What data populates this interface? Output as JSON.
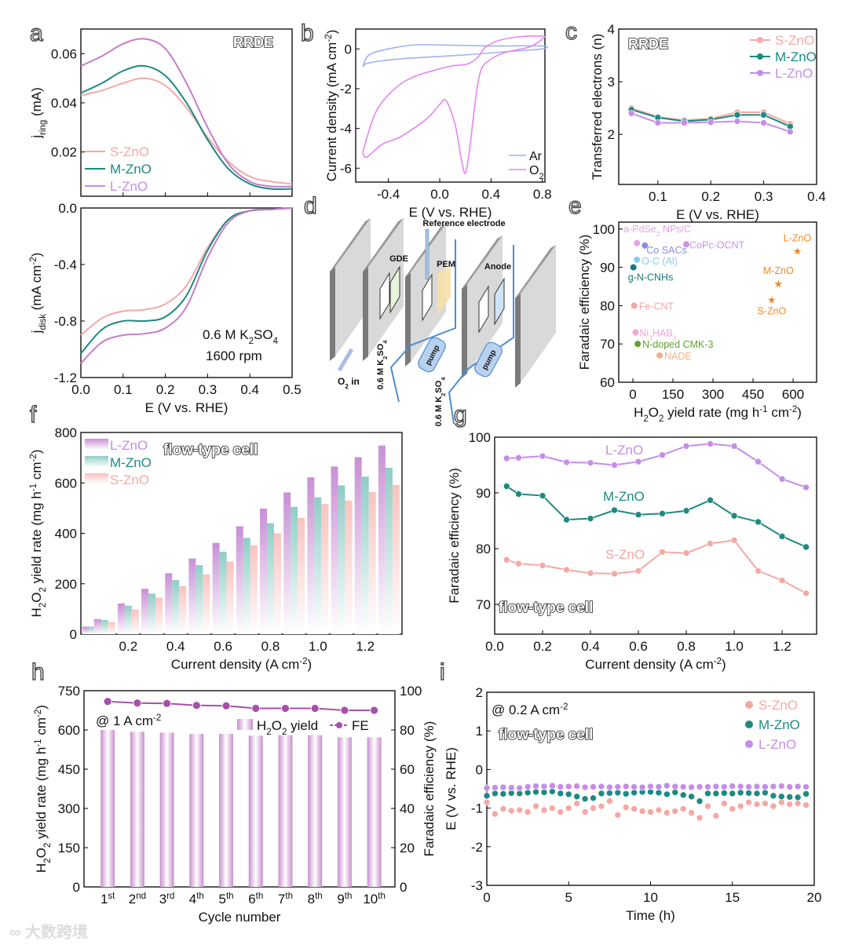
{
  "watermark": "大数跨境",
  "colors": {
    "S-ZnO": "#f4a9a4",
    "M-ZnO": "#1d8a80",
    "L-ZnO": "#c48ee8",
    "a_L": "#c77ccb",
    "h_purple": "#a650aa",
    "ar": "#9fb4ee",
    "o2": "#e486f0",
    "star": "#f08a1c"
  },
  "diagram": {
    "panel_label": "d",
    "reference_electrode": "Reference electrode",
    "gde": "GDE",
    "pem": "PEM",
    "anode": "Anode",
    "pump_1": "pump",
    "pump_2": "pump",
    "o2_in": "O_{2} in",
    "electrolyte_1": "0.6 M K_{2}SO_{4}",
    "electrolyte_2": "0.6 M K_{2}SO_{4}"
  },
  "chart_data": {
    "a_top": {
      "type": "line",
      "panel_label": "a",
      "xlim": [
        0,
        0.5
      ],
      "ylim": [
        0.002,
        0.07
      ],
      "xticks": [
        0,
        0.1,
        0.2,
        0.3,
        0.4,
        0.5
      ],
      "yticks": [
        0.02,
        0.04,
        0.06
      ],
      "ytick_labels": [
        "0.02",
        "0.04",
        "0.06"
      ],
      "ylabel": "j_{ring} (mA)",
      "annotations": [
        "RRDE"
      ],
      "legend": [
        "S-ZnO",
        "M-ZnO",
        "L-ZnO"
      ],
      "x": [
        0,
        0.05,
        0.1,
        0.15,
        0.2,
        0.25,
        0.3,
        0.35,
        0.4,
        0.45,
        0.5
      ],
      "series": [
        {
          "name": "S-ZnO",
          "values": [
            0.043,
            0.045,
            0.048,
            0.05,
            0.047,
            0.038,
            0.026,
            0.016,
            0.01,
            0.008,
            0.007
          ]
        },
        {
          "name": "M-ZnO",
          "values": [
            0.044,
            0.048,
            0.053,
            0.055,
            0.051,
            0.04,
            0.025,
            0.013,
            0.007,
            0.005,
            0.005
          ]
        },
        {
          "name": "L-ZnO",
          "values": [
            0.055,
            0.059,
            0.064,
            0.066,
            0.062,
            0.048,
            0.03,
            0.015,
            0.008,
            0.006,
            0.006
          ]
        }
      ]
    },
    "a_bottom": {
      "type": "line",
      "panel_label": "",
      "xlim": [
        0,
        0.5
      ],
      "ylim": [
        -1.2,
        0.0
      ],
      "xticks": [
        0,
        0.1,
        0.2,
        0.3,
        0.4,
        0.5
      ],
      "xtick_labels": [
        "0.0",
        "0.1",
        "0.2",
        "0.3",
        "0.4",
        "0.5"
      ],
      "yticks": [
        -1.2,
        -0.8,
        -0.4,
        0.0
      ],
      "ytick_labels": [
        "-1.2",
        "-0.8",
        "-0.4",
        "0.0"
      ],
      "xlabel": "E (V vs. RHE)",
      "ylabel": "j_{disk} (mA cm^{-2})",
      "annotations": [
        "0.6 M K_{2}SO_{4}",
        "1600 rpm"
      ],
      "x": [
        0,
        0.05,
        0.1,
        0.15,
        0.2,
        0.25,
        0.3,
        0.35,
        0.4,
        0.45,
        0.5
      ],
      "series": [
        {
          "name": "S-ZnO",
          "values": [
            -0.9,
            -0.78,
            -0.73,
            -0.72,
            -0.68,
            -0.55,
            -0.28,
            -0.08,
            -0.02,
            -0.01,
            0
          ]
        },
        {
          "name": "M-ZnO",
          "values": [
            -1.03,
            -0.86,
            -0.8,
            -0.8,
            -0.77,
            -0.62,
            -0.3,
            -0.08,
            -0.02,
            -0.01,
            0
          ]
        },
        {
          "name": "L-ZnO",
          "values": [
            -1.1,
            -0.95,
            -0.9,
            -0.89,
            -0.85,
            -0.7,
            -0.35,
            -0.1,
            -0.02,
            -0.01,
            0
          ]
        }
      ]
    },
    "b": {
      "type": "line",
      "panel_label": "b",
      "xlim": [
        -0.655,
        0.82
      ],
      "ylim": [
        -6.7,
        1.0
      ],
      "xticks": [
        -0.4,
        0.0,
        0.4,
        0.8
      ],
      "xtick_labels": [
        "-0.4",
        "0.0",
        "0.4",
        "0.8"
      ],
      "yticks": [
        -6,
        -4,
        -2,
        0
      ],
      "ytick_labels": [
        "-6",
        "-4",
        "-2",
        "0"
      ],
      "xlabel": "E (V vs. RHE)",
      "ylabel": "Current density (mA cm^{-2})",
      "legend": [
        "Ar",
        "O_{2}"
      ],
      "series": [
        {
          "name": "Ar",
          "x": [
            -0.6,
            -0.55,
            -0.3,
            0.2,
            0.6,
            0.8,
            0.8,
            0.4,
            0.0,
            -0.2,
            -0.4,
            -0.55,
            -0.6
          ],
          "y": [
            -0.9,
            -0.7,
            -0.5,
            -0.3,
            -0.1,
            0.0,
            0.15,
            0.15,
            0.2,
            0.2,
            0.0,
            -0.3,
            -0.9
          ]
        },
        {
          "name": "O_{2}",
          "x": [
            -0.6,
            -0.57,
            -0.45,
            -0.3,
            -0.1,
            0.0,
            0.05,
            0.12,
            0.17,
            0.2,
            0.23,
            0.28,
            0.32,
            0.38,
            0.5,
            0.7,
            0.8,
            0.8,
            0.6,
            0.45,
            0.35,
            0.3,
            0.22,
            0.1,
            0.0,
            -0.2,
            -0.35,
            -0.5,
            -0.6
          ],
          "y": [
            -5.2,
            -5.45,
            -4.8,
            -4.4,
            -3.5,
            -2.8,
            -2.6,
            -3.8,
            -5.6,
            -6.25,
            -5.2,
            -2.5,
            -1.1,
            -0.6,
            -0.2,
            0.1,
            0.5,
            0.65,
            0.6,
            0.4,
            0.05,
            -0.4,
            -0.75,
            -0.85,
            -1.0,
            -1.4,
            -2.0,
            -3.2,
            -5.2
          ]
        }
      ]
    },
    "c": {
      "type": "line",
      "panel_label": "c",
      "xlim": [
        0.026,
        0.4
      ],
      "ylim": [
        1.05,
        4
      ],
      "xticks": [
        0.1,
        0.2,
        0.3,
        0.4
      ],
      "xtick_labels": [
        "0.1",
        "0.2",
        "0.3",
        "0.4"
      ],
      "yticks": [
        2,
        3,
        4
      ],
      "ytick_labels": [
        "2",
        "3",
        "4"
      ],
      "xlabel": "E (V vs. RHE)",
      "ylabel": "Transferred electrons (n)",
      "annotations": [
        "RRDE"
      ],
      "legend": [
        "S-ZnO",
        "M-ZnO",
        "L-ZnO"
      ],
      "x": [
        0.05,
        0.1,
        0.15,
        0.2,
        0.25,
        0.3,
        0.35
      ],
      "series": [
        {
          "name": "S-ZnO",
          "values": [
            2.5,
            2.33,
            2.27,
            2.3,
            2.42,
            2.42,
            2.2
          ]
        },
        {
          "name": "M-ZnO",
          "values": [
            2.47,
            2.32,
            2.25,
            2.28,
            2.37,
            2.37,
            2.15
          ]
        },
        {
          "name": "L-ZnO",
          "values": [
            2.4,
            2.22,
            2.22,
            2.23,
            2.25,
            2.22,
            2.05
          ]
        }
      ]
    },
    "e": {
      "type": "scatter",
      "panel_label": "e",
      "xlim": [
        -53,
        688
      ],
      "ylim": [
        60,
        101.8
      ],
      "xticks": [
        0,
        150,
        300,
        450,
        600
      ],
      "xtick_labels": [
        "0",
        "150",
        "300",
        "450",
        "600"
      ],
      "yticks": [
        60,
        70,
        80,
        90,
        100
      ],
      "ytick_labels": [
        "60",
        "70",
        "80",
        "90",
        "100"
      ],
      "xlabel": "H_{2}O_{2} yield rate (mg h^{-1} cm^{-2})",
      "ylabel": "Faradaic efficiency (%)",
      "points": [
        {
          "label": "a-PdSe_{2} NPs/C",
          "x": 15,
          "y": 96.3,
          "color": "#e7a2e7",
          "marker": "circle"
        },
        {
          "label": "Co SACs",
          "x": 45,
          "y": 95.7,
          "color": "#8c8ce6",
          "marker": "circle"
        },
        {
          "label": "CoPc-OCNT",
          "x": 200,
          "y": 96.0,
          "color": "#c993ea",
          "marker": "circle"
        },
        {
          "label": "O-C (Al)",
          "x": 15,
          "y": 92.0,
          "color": "#86cdf2",
          "marker": "circle"
        },
        {
          "label": "g-N-CNHs",
          "x": 2,
          "y": 90.0,
          "color": "#1a7a78",
          "marker": "circle"
        },
        {
          "label": "Fe-CNT",
          "x": 5,
          "y": 80.0,
          "color": "#f2a5a5",
          "marker": "circle"
        },
        {
          "label": "Ni_{3}HAB_{2}",
          "x": 10,
          "y": 73.0,
          "color": "#f1a6d6",
          "marker": "circle"
        },
        {
          "label": "N-doped CMK-3",
          "x": 18,
          "y": 70.0,
          "color": "#5fa12d",
          "marker": "circle"
        },
        {
          "label": "NADE",
          "x": 100,
          "y": 67.0,
          "color": "#f3b285",
          "marker": "circle"
        },
        {
          "label": "L-ZnO",
          "x": 616,
          "y": 94.3,
          "color": "#f08a1c",
          "marker": "star"
        },
        {
          "label": "M-ZnO",
          "x": 545,
          "y": 85.8,
          "color": "#f08a1c",
          "marker": "star"
        },
        {
          "label": "S-ZnO",
          "x": 520,
          "y": 81.6,
          "color": "#f08a1c",
          "marker": "star"
        }
      ]
    },
    "f": {
      "type": "bar",
      "panel_label": "f",
      "xlim": [
        0,
        1.355
      ],
      "ylim": [
        0,
        800
      ],
      "xticks": [
        0.2,
        0.4,
        0.6,
        0.8,
        1.0,
        1.2
      ],
      "xtick_labels": [
        "0.2",
        "0.4",
        "0.6",
        "0.8",
        "1.0",
        "1.2"
      ],
      "yticks": [
        0,
        200,
        400,
        600,
        800
      ],
      "ytick_labels": [
        "0",
        "200",
        "400",
        "600",
        "800"
      ],
      "xlabel": "Current density (A cm^{-2})",
      "ylabel": "H_{2}O_{2} yield rate (mg h^{-1} cm^{-2})",
      "annotations": [
        "flow-type cell"
      ],
      "legend": [
        "L-ZnO",
        "M-ZnO",
        "S-ZnO"
      ],
      "categories": [
        0.05,
        0.1,
        0.2,
        0.3,
        0.4,
        0.5,
        0.6,
        0.7,
        0.8,
        0.9,
        1.0,
        1.1,
        1.2,
        1.3
      ],
      "series": [
        {
          "name": "L-ZnO",
          "values": [
            30,
            60,
            122,
            180,
            242,
            300,
            362,
            428,
            498,
            562,
            622,
            665,
            702,
            748
          ]
        },
        {
          "name": "M-ZnO",
          "values": [
            30,
            56,
            113,
            161,
            215,
            274,
            327,
            382,
            440,
            505,
            543,
            590,
            625,
            660
          ]
        },
        {
          "name": "S-ZnO",
          "values": [
            25,
            48,
            98,
            145,
            191,
            238,
            288,
            352,
            400,
            461,
            516,
            530,
            564,
            592
          ]
        }
      ]
    },
    "g": {
      "type": "line",
      "panel_label": "g",
      "xlim": [
        0,
        1.344
      ],
      "ylim": [
        64.65,
        100
      ],
      "xticks": [
        0,
        0.2,
        0.4,
        0.6,
        0.8,
        1.0,
        1.2
      ],
      "xtick_labels": [
        "0.0",
        "0.2",
        "0.4",
        "0.6",
        "0.8",
        "1.0",
        "1.2"
      ],
      "yticks": [
        70,
        80,
        90,
        100
      ],
      "ytick_labels": [
        "70",
        "80",
        "90",
        "100"
      ],
      "xlabel": "Current density (A cm^{-2})",
      "ylabel": "Faradaic efficiency (%)",
      "annotations": [
        "flow-type cell"
      ],
      "legend": [
        "L-ZnO",
        "M-ZnO",
        "S-ZnO"
      ],
      "x": [
        0.05,
        0.1,
        0.2,
        0.3,
        0.4,
        0.5,
        0.6,
        0.7,
        0.8,
        0.9,
        1.0,
        1.1,
        1.2,
        1.3
      ],
      "series": [
        {
          "name": "L-ZnO",
          "values": [
            96.2,
            96.3,
            96.6,
            95.5,
            95.4,
            95.0,
            95.6,
            96.8,
            98.4,
            98.8,
            98.4,
            95.6,
            92.5,
            91.0
          ]
        },
        {
          "name": "M-ZnO",
          "values": [
            91.2,
            89.8,
            89.5,
            85.2,
            85.4,
            86.9,
            86.1,
            86.3,
            86.8,
            88.7,
            85.9,
            84.8,
            82.2,
            80.3
          ]
        },
        {
          "name": "S-ZnO",
          "values": [
            78.0,
            77.3,
            77.0,
            76.2,
            75.6,
            75.5,
            76.0,
            79.4,
            79.2,
            80.9,
            81.5,
            76.0,
            74.3,
            72.0
          ]
        }
      ]
    },
    "h": {
      "type": "bar+line",
      "panel_label": "h",
      "xlim": [
        0.2,
        10.7
      ],
      "ylim": [
        0,
        750
      ],
      "y2lim": [
        0,
        100
      ],
      "xticks": [
        1,
        2,
        3,
        4,
        5,
        6,
        7,
        8,
        9,
        10
      ],
      "xtick_labels": [
        "1^{st}",
        "2^{nd}",
        "3^{rd}",
        "4^{th}",
        "5^{th}",
        "6^{th}",
        "7^{th}",
        "8^{th}",
        "9^{th}",
        "10^{th}"
      ],
      "yticks": [
        0,
        150,
        300,
        450,
        600,
        750
      ],
      "ytick_labels": [
        "0",
        "150",
        "300",
        "450",
        "600",
        "750"
      ],
      "y2ticks": [
        0,
        20,
        40,
        60,
        80,
        100
      ],
      "y2tick_labels": [
        "0",
        "20",
        "40",
        "60",
        "80",
        "100"
      ],
      "xlabel": "Cycle number",
      "ylabel": "H_{2}O_{2} yield rate (mg h^{-1} cm^{-2})",
      "y2label": "Faradaic efficiency (%)",
      "annotations": [
        "@ 1 A cm^{-2}"
      ],
      "legend": [
        "H_{2}O_{2} yield",
        "FE"
      ],
      "series": [
        {
          "name": "H_{2}O_{2} yield",
          "axis": "left",
          "values": [
            600,
            593,
            590,
            585,
            585,
            578,
            580,
            580,
            572,
            572
          ]
        },
        {
          "name": "FE",
          "axis": "right",
          "values": [
            94.5,
            93.7,
            93.5,
            92.5,
            92.3,
            91.0,
            91.0,
            91.0,
            90.0,
            90.0
          ]
        }
      ]
    },
    "i": {
      "type": "scatter",
      "panel_label": "i",
      "xlim": [
        0,
        20
      ],
      "ylim": [
        -3,
        2
      ],
      "xticks": [
        0,
        5,
        10,
        15,
        20
      ],
      "xtick_labels": [
        "0",
        "5",
        "10",
        "15",
        "20"
      ],
      "yticks": [
        -3,
        -2,
        -1,
        0,
        1,
        2
      ],
      "ytick_labels": [
        "-3",
        "-2",
        "-1",
        "0",
        "1",
        "2"
      ],
      "xlabel": "Time (h)",
      "ylabel": "E (V vs. RHE)",
      "annotations": [
        "@ 0.2 A cm^{-2}",
        "flow-type cell"
      ],
      "legend": [
        "S-ZnO",
        "M-ZnO",
        "L-ZnO"
      ],
      "x": [
        0,
        0.5,
        1,
        1.5,
        2,
        2.5,
        3,
        3.5,
        4,
        4.5,
        5,
        5.5,
        6,
        6.5,
        7,
        7.5,
        8,
        8.5,
        9,
        9.5,
        10,
        10.5,
        11,
        11.5,
        12,
        12.5,
        13,
        13.5,
        14,
        14.5,
        15,
        15.5,
        16,
        16.5,
        17,
        17.5,
        18,
        18.5,
        19,
        19.5
      ],
      "series": [
        {
          "name": "S-ZnO",
          "values": [
            -0.85,
            -1.15,
            -1.02,
            -1.07,
            -1.05,
            -1.1,
            -0.95,
            -1.05,
            -1.0,
            -1.1,
            -1.0,
            -0.88,
            -1.1,
            -1.0,
            -0.95,
            -0.82,
            -1.18,
            -0.98,
            -1.02,
            -1.08,
            -1.1,
            -1.05,
            -1.12,
            -1.08,
            -1.02,
            -1.12,
            -1.25,
            -0.95,
            -1.2,
            -0.88,
            -1.02,
            -0.95,
            -0.85,
            -0.9,
            -0.88,
            -0.95,
            -0.85,
            -0.9,
            -0.88,
            -0.92
          ]
        },
        {
          "name": "M-ZnO",
          "values": [
            -0.68,
            -0.62,
            -0.63,
            -0.61,
            -0.62,
            -0.6,
            -0.58,
            -0.59,
            -0.57,
            -0.62,
            -0.64,
            -0.7,
            -0.76,
            -0.74,
            -0.62,
            -0.61,
            -0.6,
            -0.63,
            -0.6,
            -0.58,
            -0.58,
            -0.6,
            -0.64,
            -0.59,
            -0.66,
            -0.7,
            -0.82,
            -0.62,
            -0.62,
            -0.61,
            -0.62,
            -0.6,
            -0.61,
            -0.62,
            -0.6,
            -0.68,
            -0.7,
            -0.71,
            -0.72,
            -0.63
          ]
        },
        {
          "name": "L-ZnO",
          "values": [
            -0.48,
            -0.47,
            -0.46,
            -0.47,
            -0.48,
            -0.45,
            -0.43,
            -0.44,
            -0.42,
            -0.45,
            -0.44,
            -0.43,
            -0.46,
            -0.45,
            -0.44,
            -0.46,
            -0.45,
            -0.44,
            -0.45,
            -0.46,
            -0.44,
            -0.45,
            -0.42,
            -0.44,
            -0.45,
            -0.46,
            -0.45,
            -0.45,
            -0.44,
            -0.45,
            -0.43,
            -0.44,
            -0.45,
            -0.44,
            -0.45,
            -0.44,
            -0.43,
            -0.45,
            -0.44,
            -0.45
          ]
        }
      ]
    }
  }
}
